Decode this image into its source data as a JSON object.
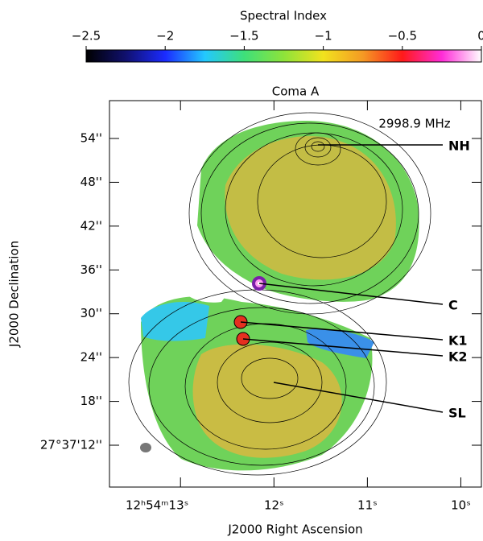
{
  "colorbar": {
    "label": "Spectral Index",
    "lim": [
      -2.5,
      0
    ],
    "ticks": [
      {
        "value": -2.5,
        "label": "−2.5"
      },
      {
        "value": -2,
        "label": "−2"
      },
      {
        "value": -1.5,
        "label": "−1.5"
      },
      {
        "value": -1,
        "label": "−1"
      },
      {
        "value": -0.5,
        "label": "−0.5"
      },
      0
    ],
    "colormap": [
      "#000000",
      "#10106e",
      "#1b2bff",
      "#23c8ff",
      "#3ee07a",
      "#8ee33a",
      "#f2e21e",
      "#f59a24",
      "#ff1a1a",
      "#ff2cd8",
      "#ffffff"
    ]
  },
  "plot": {
    "title": "Coma A",
    "frequency": "2998.9 MHz",
    "x_label": "J2000 Right Ascension",
    "y_label": "J2000 Declination",
    "xlim": [
      13.76,
      9.78
    ],
    "xticks": [
      {
        "value": 13,
        "label": "12ʰ54ᵐ13ˢ"
      },
      {
        "value": 12,
        "label": "12ˢ"
      },
      {
        "value": 11,
        "label": "11ˢ"
      },
      {
        "value": 10,
        "label": "10ˢ"
      }
    ],
    "ylim": [
      6.27,
      59.18
    ],
    "yticks": [
      {
        "value": 12,
        "label": "27°37'12''"
      },
      {
        "value": 18,
        "label": "18''"
      },
      {
        "value": 24,
        "label": "24''"
      },
      {
        "value": 30,
        "label": "30''"
      },
      {
        "value": 36,
        "label": "36''"
      },
      {
        "value": 42,
        "label": "42''"
      },
      {
        "value": 48,
        "label": "48''"
      },
      {
        "value": 54,
        "label": "54''"
      }
    ],
    "annotations": [
      "NH",
      "C",
      "K1",
      "K2",
      "SL"
    ]
  }
}
